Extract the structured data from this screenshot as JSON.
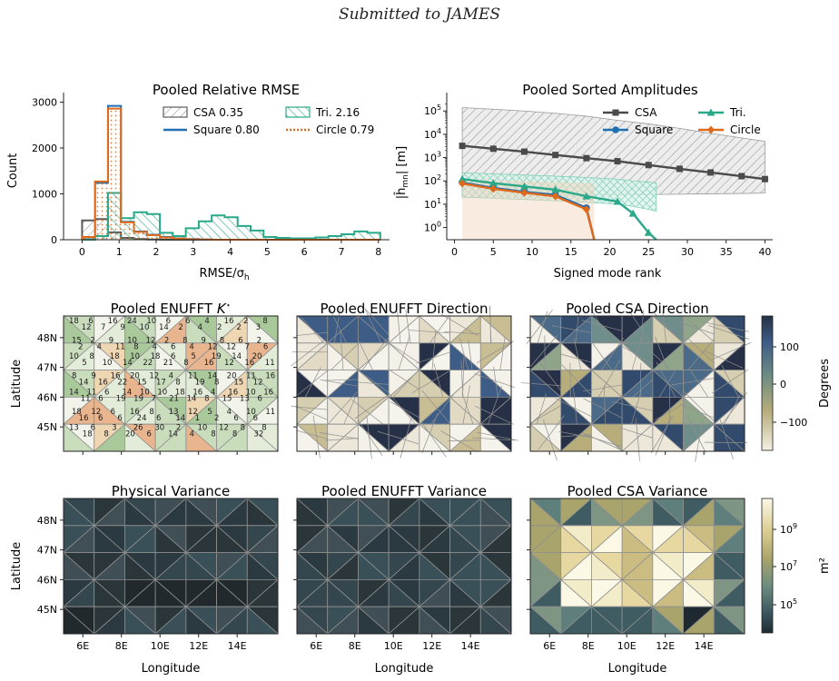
{
  "header": "Submitted to JAMES",
  "chart_data": [
    {
      "type": "bar",
      "title": "Pooled Relative RMSE",
      "xlabel": "RMSE/σ_h",
      "ylabel": "Count",
      "xlim": [
        -0.5,
        8.3
      ],
      "ylim": [
        0,
        3050
      ],
      "xticks": [
        0,
        1,
        2,
        3,
        4,
        5,
        6,
        7,
        8
      ],
      "yticks": [
        0,
        1000,
        2000,
        3000
      ],
      "grid": false,
      "legend_position": "top-right",
      "bin_edges": [
        0,
        0.35,
        0.7,
        1.05,
        1.4,
        1.75,
        2.1,
        2.45,
        2.8,
        3.15,
        3.5,
        3.85,
        4.2,
        4.55,
        4.9,
        5.25,
        5.6,
        5.95,
        6.3,
        6.65,
        7.0,
        7.35,
        7.7,
        8.05
      ],
      "series": [
        {
          "name": "CSA 0.35",
          "color": "#5a5a5a",
          "values": [
            420,
            450,
            160,
            40,
            15,
            5,
            0,
            0,
            0,
            0,
            0,
            0,
            0,
            0,
            0,
            0,
            0,
            0,
            0,
            0,
            0,
            0,
            0
          ]
        },
        {
          "name": "Square 0.80",
          "color": "#1f6fb2",
          "values": [
            50,
            1240,
            2920,
            390,
            180,
            110,
            60,
            30,
            15,
            5,
            0,
            0,
            0,
            0,
            0,
            0,
            0,
            0,
            0,
            0,
            0,
            0,
            0
          ]
        },
        {
          "name": "Tri. 2.16",
          "color": "#2aa88a",
          "values": [
            0,
            80,
            1020,
            470,
            600,
            560,
            150,
            80,
            250,
            400,
            530,
            490,
            300,
            200,
            60,
            40,
            30,
            30,
            50,
            80,
            120,
            180,
            150
          ]
        },
        {
          "name": "Circle 0.79",
          "color": "#e06a1b",
          "values": [
            60,
            1270,
            2860,
            380,
            170,
            100,
            50,
            25,
            10,
            5,
            0,
            0,
            0,
            0,
            0,
            0,
            0,
            0,
            0,
            0,
            0,
            0,
            0
          ]
        }
      ]
    },
    {
      "type": "line",
      "title": "Pooled Sorted Amplitudes",
      "xlabel": "Signed mode rank",
      "ylabel": "|ĥ_mn| [m]",
      "yscale": "log",
      "xlim": [
        -1,
        41
      ],
      "ylim": [
        0.3,
        300000
      ],
      "xticks": [
        0,
        5,
        10,
        15,
        20,
        25,
        30,
        35,
        40
      ],
      "yticks": [
        "10^0",
        "10^1",
        "10^2",
        "10^3",
        "10^4",
        "10^5"
      ],
      "grid": false,
      "legend_position": "top-right",
      "series": [
        {
          "name": "CSA",
          "color": "#4a4a4a",
          "marker": "square",
          "x": [
            1,
            5,
            9,
            13,
            17,
            21,
            25,
            29,
            33,
            37,
            40
          ],
          "y": [
            3200,
            2400,
            1800,
            1300,
            950,
            700,
            480,
            330,
            230,
            160,
            120
          ],
          "band_low": [
            20,
            21,
            22,
            23,
            24,
            25,
            26,
            27,
            28,
            29,
            30
          ],
          "band_high": [
            140000,
            120000,
            100000,
            80000,
            60000,
            40000,
            28000,
            18000,
            11000,
            7000,
            5000
          ]
        },
        {
          "name": "Square",
          "color": "#1f6fb2",
          "marker": "circle",
          "x": [
            1,
            5,
            9,
            13,
            17,
            18
          ],
          "y": [
            85,
            50,
            34,
            25,
            7,
            0.3
          ]
        },
        {
          "name": "Tri.",
          "color": "#2aa88a",
          "marker": "triangle",
          "x": [
            1,
            5,
            9,
            13,
            17,
            21,
            23,
            25,
            26
          ],
          "y": [
            120,
            80,
            58,
            42,
            22,
            13,
            4,
            0.6,
            0.3
          ],
          "band_low": [
            20,
            18,
            16,
            14,
            12,
            10,
            8,
            6,
            5
          ],
          "band_high": [
            220,
            200,
            180,
            160,
            140,
            120,
            100,
            90,
            80
          ]
        },
        {
          "name": "Circle",
          "color": "#e06a1b",
          "marker": "diamond",
          "x": [
            1,
            5,
            9,
            13,
            17,
            18
          ],
          "y": [
            78,
            46,
            31,
            22,
            6,
            0.3
          ]
        }
      ]
    },
    {
      "type": "heatmap",
      "title": "Pooled ENUFFT K*",
      "ylabel": "Latitude",
      "yticks": [
        "45N",
        "46N",
        "47N",
        "48N"
      ]
    },
    {
      "type": "heatmap",
      "title": "Pooled ENUFFT Direction"
    },
    {
      "type": "heatmap",
      "title": "Pooled CSA Direction"
    },
    {
      "type": "heatmap",
      "title": "Physical Variance",
      "xlabel": "Longitude",
      "ylabel": "Latitude",
      "xticks": [
        "6E",
        "8E",
        "10E",
        "12E",
        "14E"
      ],
      "yticks": [
        "45N",
        "46N",
        "47N",
        "48N"
      ]
    },
    {
      "type": "heatmap",
      "title": "Pooled ENUFFT Variance",
      "xlabel": "Longitude",
      "xticks": [
        "6E",
        "8E",
        "10E",
        "12E",
        "14E"
      ]
    },
    {
      "type": "heatmap",
      "title": "Pooled CSA Variance",
      "xlabel": "Longitude",
      "xticks": [
        "6E",
        "8E",
        "10E",
        "12E",
        "14E"
      ]
    }
  ],
  "kstar_counts": [
    [
      18,
      12,
      6,
      7,
      16,
      9,
      24,
      10,
      10,
      14,
      6,
      2,
      6,
      4,
      4,
      2,
      16,
      2,
      2,
      3,
      8
    ],
    [
      15,
      2,
      2,
      4,
      9,
      11,
      10,
      8,
      12,
      4,
      2,
      6,
      8,
      4,
      9,
      12,
      8,
      12,
      6,
      7,
      2,
      6
    ],
    [
      10,
      5,
      8,
      10,
      18,
      14,
      10,
      22,
      18,
      21,
      6,
      8,
      5,
      16,
      19,
      12,
      14,
      16,
      20,
      11
    ],
    [
      8,
      14,
      9,
      16,
      16,
      22,
      20,
      15,
      12,
      17,
      4,
      8,
      11,
      19,
      14,
      8,
      20,
      15,
      11,
      12,
      16
    ],
    [
      14,
      11,
      11,
      6,
      6,
      19,
      14,
      19,
      10,
      7,
      10,
      21,
      18,
      14,
      16,
      8,
      4,
      15,
      16,
      13,
      10,
      6,
      16
    ],
    [
      18,
      16,
      12,
      6,
      6,
      6,
      16,
      24,
      8,
      6,
      13,
      14,
      12,
      1,
      5,
      2,
      4,
      6,
      10,
      6,
      11
    ],
    [
      13,
      18,
      6,
      8,
      3,
      20,
      26,
      6,
      30,
      14,
      2,
      4,
      10,
      8,
      12,
      8,
      8,
      32,
      8
    ]
  ],
  "colorbars": [
    {
      "label": "Degrees",
      "ticks": [
        "100",
        "0",
        "−100"
      ]
    },
    {
      "label": "m²",
      "ticks": [
        "10^9",
        "10^7",
        "10^5"
      ]
    }
  ]
}
